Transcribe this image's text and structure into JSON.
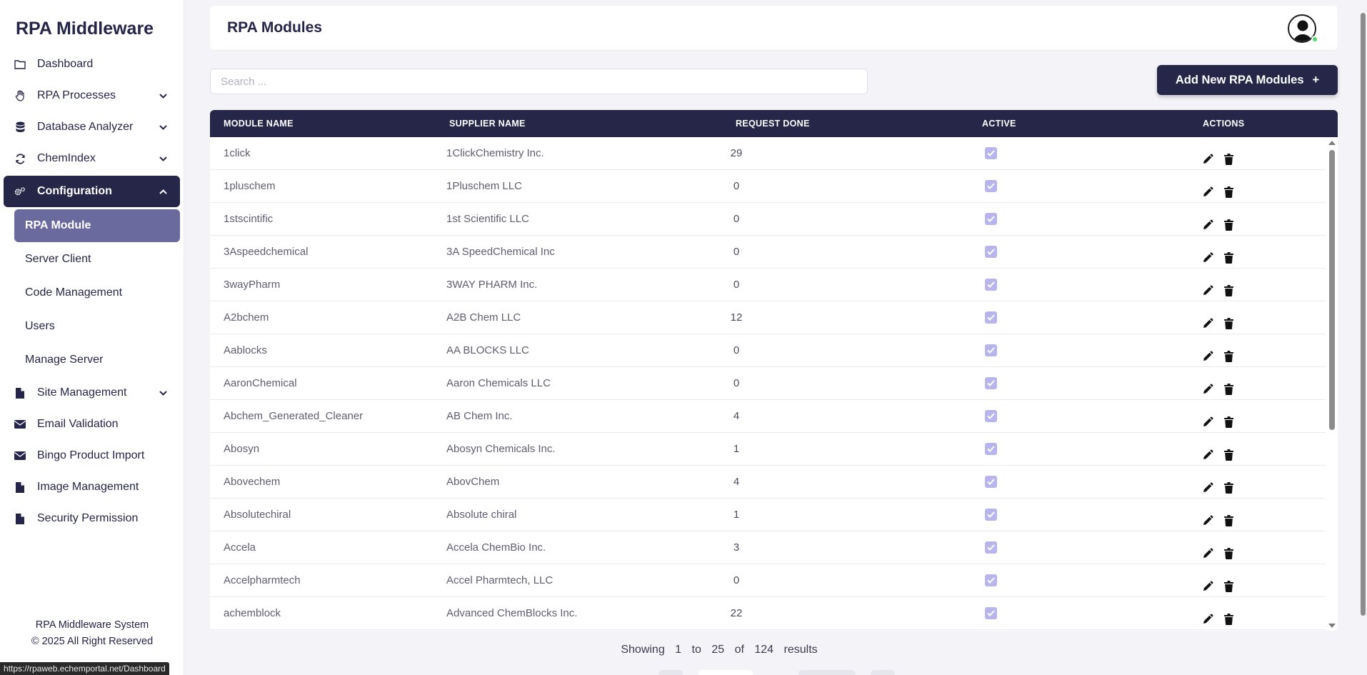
{
  "sidebar": {
    "brand": "RPA Middleware",
    "items": [
      {
        "label": "Dashboard",
        "icon": "folder-icon"
      },
      {
        "label": "RPA Processes",
        "icon": "hand-icon",
        "chevron": "down"
      },
      {
        "label": "Database Analyzer",
        "icon": "database-icon",
        "chevron": "down"
      },
      {
        "label": "ChemIndex",
        "icon": "sync-icon",
        "chevron": "down"
      },
      {
        "label": "Configuration",
        "icon": "cogs-icon",
        "chevron": "up",
        "active": true
      },
      {
        "label": "Site Management",
        "icon": "file-icon",
        "chevron": "down"
      },
      {
        "label": "Email Validation",
        "icon": "envelope-icon"
      },
      {
        "label": "Bingo Product Import",
        "icon": "envelope-icon"
      },
      {
        "label": "Image Management",
        "icon": "file-icon"
      },
      {
        "label": "Security Permission",
        "icon": "file-icon"
      }
    ],
    "config_sub": [
      "RPA Module",
      "Server Client",
      "Code Management",
      "Users",
      "Manage Server"
    ],
    "footer_line1": "RPA Middleware System",
    "footer_line2": "© 2025 All Right Reserved"
  },
  "status_url": "https://rpaweb.echemportal.net/Dashboard",
  "header": {
    "title": "RPA Modules"
  },
  "search": {
    "placeholder": "Search ..."
  },
  "add_button": {
    "label": "Add New RPA Modules",
    "icon": "+"
  },
  "table": {
    "columns": [
      "MODULE NAME",
      "SUPPLIER NAME",
      "REQUEST DONE",
      "ACTIVE",
      "ACTIONS"
    ],
    "rows": [
      {
        "module": "1click",
        "supplier": "1ClickChemistry Inc.",
        "requests": "29",
        "active": true
      },
      {
        "module": "1pluschem",
        "supplier": "1Pluschem LLC",
        "requests": "0",
        "active": true
      },
      {
        "module": "1stscintific",
        "supplier": "1st Scientific LLC",
        "requests": "0",
        "active": true
      },
      {
        "module": "3Aspeedchemical",
        "supplier": "3A SpeedChemical Inc",
        "requests": "0",
        "active": true
      },
      {
        "module": "3wayPharm",
        "supplier": "3WAY PHARM Inc.",
        "requests": "0",
        "active": true
      },
      {
        "module": "A2bchem",
        "supplier": "A2B Chem LLC",
        "requests": "12",
        "active": true
      },
      {
        "module": "Aablocks",
        "supplier": "AA BLOCKS LLC",
        "requests": "0",
        "active": true
      },
      {
        "module": "AaronChemical",
        "supplier": "Aaron Chemicals LLC",
        "requests": "0",
        "active": true
      },
      {
        "module": "Abchem_Generated_Cleaner",
        "supplier": "AB Chem Inc.",
        "requests": "4",
        "active": true
      },
      {
        "module": "Abosyn",
        "supplier": "Abosyn Chemicals Inc.",
        "requests": "1",
        "active": true
      },
      {
        "module": "Abovechem",
        "supplier": "AbovChem",
        "requests": "4",
        "active": true
      },
      {
        "module": "Absolutechiral",
        "supplier": "Absolute chiral",
        "requests": "1",
        "active": true
      },
      {
        "module": "Accela",
        "supplier": "Accela ChemBio Inc.",
        "requests": "3",
        "active": true
      },
      {
        "module": "Accelpharmtech",
        "supplier": "Accel Pharmtech, LLC",
        "requests": "0",
        "active": true
      },
      {
        "module": "achemblock",
        "supplier": "Advanced ChemBlocks Inc.",
        "requests": "22",
        "active": true
      }
    ]
  },
  "pagination": {
    "showing": "Showing",
    "from": "1",
    "to_word": "to",
    "to": "25",
    "of_word": "of",
    "total": "124",
    "results": "results"
  },
  "colors": {
    "primary": "#262648",
    "selected": "#6b6a9e",
    "checkbox": "#b8b5ec",
    "online": "#56d36b"
  }
}
